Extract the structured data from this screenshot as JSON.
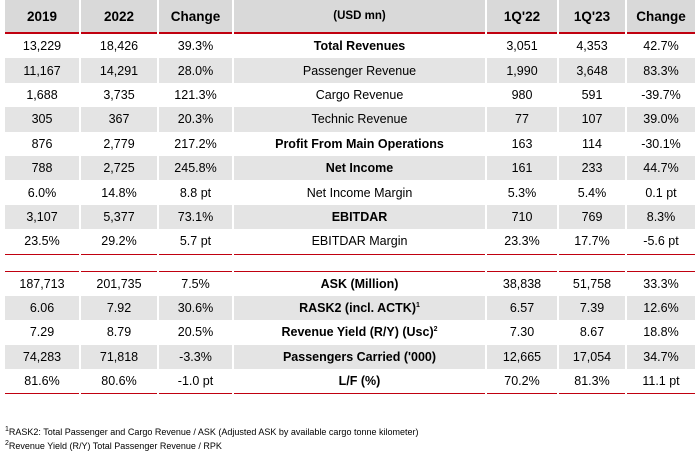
{
  "header": {
    "y2019": "2019",
    "y2022": "2022",
    "change_left": "Change",
    "units": "(USD mn)",
    "q122": "1Q'22",
    "q123": "1Q'23",
    "change_right": "Change"
  },
  "rows_top": [
    {
      "y2019": "13,229",
      "y2022": "18,426",
      "chg": "39.3%",
      "metric": "Total Revenues",
      "q122": "3,051",
      "q123": "4,353",
      "qchg": "42.7%",
      "bold": true
    },
    {
      "y2019": "11,167",
      "y2022": "14,291",
      "chg": "28.0%",
      "metric": "Passenger Revenue",
      "q122": "1,990",
      "q123": "3,648",
      "qchg": "83.3%",
      "bold": false
    },
    {
      "y2019": "1,688",
      "y2022": "3,735",
      "chg": "121.3%",
      "metric": "Cargo Revenue",
      "q122": "980",
      "q123": "591",
      "qchg": "-39.7%",
      "bold": false
    },
    {
      "y2019": "305",
      "y2022": "367",
      "chg": "20.3%",
      "metric": "Technic Revenue",
      "q122": "77",
      "q123": "107",
      "qchg": "39.0%",
      "bold": false
    },
    {
      "y2019": "876",
      "y2022": "2,779",
      "chg": "217.2%",
      "metric": "Profit From Main Operations",
      "q122": "163",
      "q123": "114",
      "qchg": "-30.1%",
      "bold": true
    },
    {
      "y2019": "788",
      "y2022": "2,725",
      "chg": "245.8%",
      "metric": "Net Income",
      "q122": "161",
      "q123": "233",
      "qchg": "44.7%",
      "bold": true
    },
    {
      "y2019": "6.0%",
      "y2022": "14.8%",
      "chg": "8.8 pt",
      "metric": "Net Income Margin",
      "q122": "5.3%",
      "q123": "5.4%",
      "qchg": "0.1 pt",
      "bold": false
    },
    {
      "y2019": "3,107",
      "y2022": "5,377",
      "chg": "73.1%",
      "metric": "EBITDAR",
      "q122": "710",
      "q123": "769",
      "qchg": "8.3%",
      "bold": true
    },
    {
      "y2019": "23.5%",
      "y2022": "29.2%",
      "chg": "5.7 pt",
      "metric": "EBITDAR Margin",
      "q122": "23.3%",
      "q123": "17.7%",
      "qchg": "-5.6 pt",
      "bold": false
    }
  ],
  "rows_bottom": [
    {
      "y2019": "187,713",
      "y2022": "201,735",
      "chg": "7.5%",
      "metric": "ASK (Million)",
      "sup": "",
      "q122": "38,838",
      "q123": "51,758",
      "qchg": "33.3%",
      "bold": true
    },
    {
      "y2019": "6.06",
      "y2022": "7.92",
      "chg": "30.6%",
      "metric": "RASK2 (incl. ACTK)",
      "sup": "1",
      "q122": "6.57",
      "q123": "7.39",
      "qchg": "12.6%",
      "bold": true
    },
    {
      "y2019": "7.29",
      "y2022": "8.79",
      "chg": "20.5%",
      "metric": "Revenue Yield (R/Y) (Usc)",
      "sup": "2",
      "q122": "7.30",
      "q123": "8.67",
      "qchg": "18.8%",
      "bold": true
    },
    {
      "y2019": "74,283",
      "y2022": "71,818",
      "chg": "-3.3%",
      "metric": "Passengers Carried ('000)",
      "sup": "",
      "q122": "12,665",
      "q123": "17,054",
      "qchg": "34.7%",
      "bold": true
    },
    {
      "y2019": "81.6%",
      "y2022": "80.6%",
      "chg": "-1.0 pt",
      "metric": "L/F (%)",
      "sup": "",
      "q122": "70.2%",
      "q123": "81.3%",
      "qchg": "11.1 pt",
      "bold": true
    }
  ],
  "footnotes": [
    {
      "num": "1",
      "text": "RASK2: Total Passenger and Cargo Revenue / ASK (Adjusted ASK by available cargo tonne kilometer)"
    },
    {
      "num": "2",
      "text": "Revenue Yield (R/Y) Total Passenger Revenue / RPK"
    }
  ]
}
